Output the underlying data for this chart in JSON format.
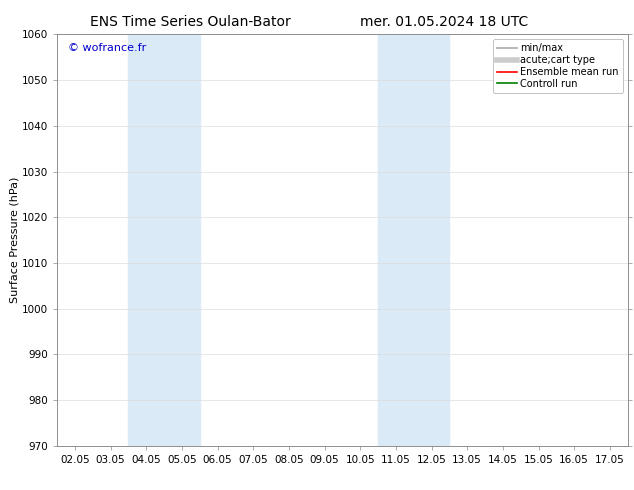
{
  "title_left": "ENS Time Series Oulan-Bator",
  "title_right": "mer. 01.05.2024 18 UTC",
  "ylabel": "Surface Pressure (hPa)",
  "ylim": [
    970,
    1060
  ],
  "yticks": [
    970,
    980,
    990,
    1000,
    1010,
    1020,
    1030,
    1040,
    1050,
    1060
  ],
  "xtick_labels": [
    "02.05",
    "03.05",
    "04.05",
    "05.05",
    "06.05",
    "07.05",
    "08.05",
    "09.05",
    "10.05",
    "11.05",
    "12.05",
    "13.05",
    "14.05",
    "15.05",
    "16.05",
    "17.05"
  ],
  "xtick_positions": [
    0,
    1,
    2,
    3,
    4,
    5,
    6,
    7,
    8,
    9,
    10,
    11,
    12,
    13,
    14,
    15
  ],
  "xlim": [
    -0.5,
    15.5
  ],
  "watermark": "© wofrance.fr",
  "watermark_color": "#0000cc",
  "shaded_bands": [
    {
      "x_start": 2.0,
      "x_end": 4.0,
      "color": "#daeaf7"
    },
    {
      "x_start": 9.0,
      "x_end": 11.0,
      "color": "#daeaf7"
    }
  ],
  "legend_entries": [
    {
      "label": "min/max",
      "color": "#aaaaaa",
      "lw": 1.2,
      "style": "solid"
    },
    {
      "label": "acute;cart type",
      "color": "#cccccc",
      "lw": 4,
      "style": "solid"
    },
    {
      "label": "Ensemble mean run",
      "color": "#ff0000",
      "lw": 1.2,
      "style": "solid"
    },
    {
      "label": "Controll run",
      "color": "#008000",
      "lw": 1.2,
      "style": "solid"
    }
  ],
  "bg_color": "#ffffff",
  "plot_bg_color": "#ffffff",
  "grid_color": "#dddddd",
  "title_fontsize": 10,
  "ylabel_fontsize": 8,
  "tick_fontsize": 7.5,
  "legend_fontsize": 7,
  "watermark_fontsize": 8
}
